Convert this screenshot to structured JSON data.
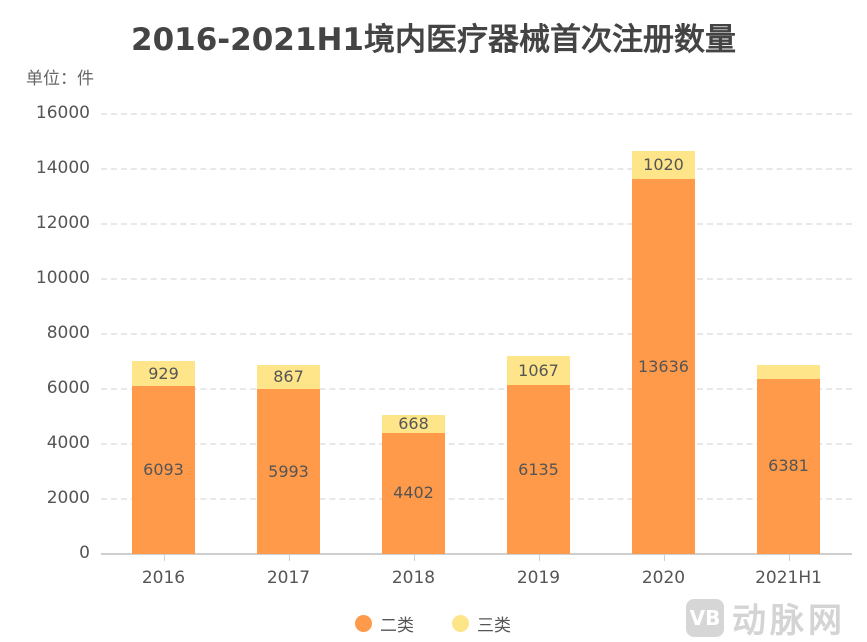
{
  "header": {
    "title": "2016-2021H1境内医疗器械首次注册数量",
    "unit": "单位：件"
  },
  "legend": [
    {
      "label": "二类",
      "color": "#fe9a4a"
    },
    {
      "label": "三类",
      "color": "#fee58a"
    }
  ],
  "watermark": {
    "logo": "VB",
    "text": "动脉网"
  },
  "y_ticks": [
    "16000",
    "14000",
    "12000",
    "10000",
    "8000",
    "6000",
    "4000",
    "2000",
    "0"
  ],
  "x_labels": [
    "2016",
    "2017",
    "2018",
    "2019",
    "2020",
    "2021H1"
  ],
  "bar_labels": {
    "class2": [
      "6093",
      "5993",
      "4402",
      "6135",
      "13636",
      "6381"
    ],
    "class3": [
      "929",
      "867",
      "668",
      "1067",
      "1020",
      ""
    ]
  },
  "chart_data": {
    "type": "bar",
    "stacked": true,
    "title": "2016-2021H1境内医疗器械首次注册数量",
    "subtitle": "单位：件",
    "xlabel": "",
    "ylabel": "件",
    "categories": [
      "2016",
      "2017",
      "2018",
      "2019",
      "2020",
      "2021H1"
    ],
    "series": [
      {
        "name": "二类",
        "color": "#fe9a4a",
        "values": [
          6093,
          5993,
          4402,
          6135,
          13636,
          6381
        ]
      },
      {
        "name": "三类",
        "color": "#fee58a",
        "values": [
          929,
          867,
          668,
          1067,
          1020,
          500
        ]
      }
    ],
    "ylim": [
      0,
      16000
    ],
    "yticks": [
      0,
      2000,
      4000,
      6000,
      8000,
      10000,
      12000,
      14000,
      16000
    ],
    "grid": true,
    "legend_position": "bottom",
    "annotations": [
      "2021H1 三类 segment unlabeled (≈500 estimated)"
    ]
  }
}
